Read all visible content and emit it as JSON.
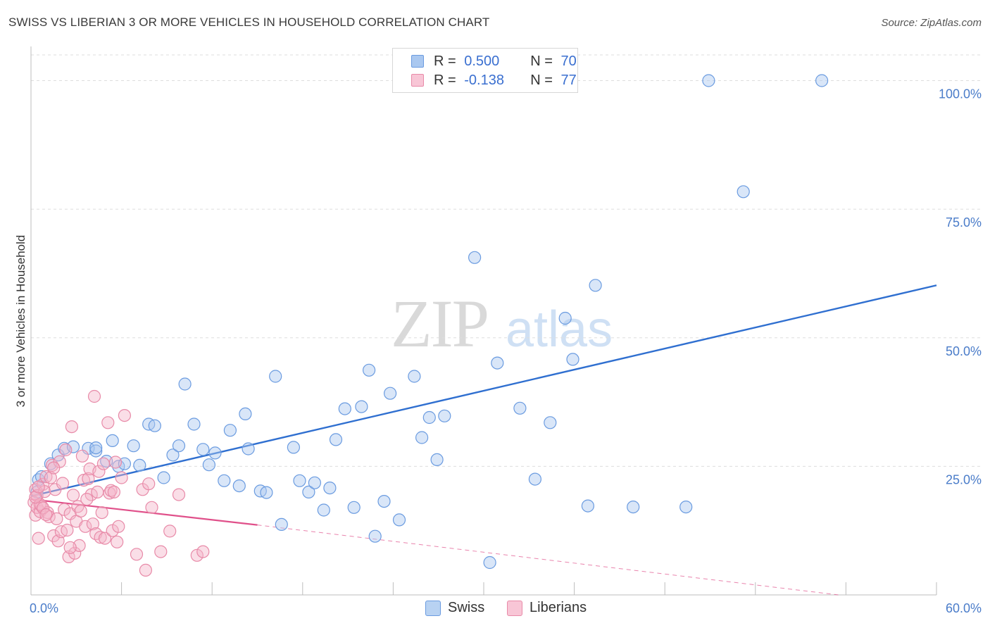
{
  "header": {
    "title": "SWISS VS LIBERIAN 3 OR MORE VEHICLES IN HOUSEHOLD CORRELATION CHART",
    "source": "Source: ZipAtlas.com"
  },
  "legend": {
    "swiss": {
      "r_label": "R = ",
      "r_value": "0.500",
      "n_label": "N = ",
      "n_value": "70"
    },
    "liberians": {
      "r_label": "R = ",
      "r_value": "-0.138",
      "n_label": "N = ",
      "n_value": "77"
    }
  },
  "colors": {
    "swiss_fill": "#aac8f0",
    "swiss_stroke": "#6a9be0",
    "swiss_line": "#2f6fd0",
    "lib_fill": "#f5b6ca",
    "lib_stroke": "#e88aa8",
    "lib_line": "#e0508a",
    "grid": "#dedede",
    "tick_text": "#4a7cc9"
  },
  "chart_data": {
    "type": "scatter",
    "title": "SWISS VS LIBERIAN 3 OR MORE VEHICLES IN HOUSEHOLD CORRELATION CHART",
    "xlabel": "",
    "ylabel": "3 or more Vehicles in Household",
    "xlim": [
      0,
      60
    ],
    "ylim": [
      0,
      105
    ],
    "x_tick_labels": [
      "0.0%",
      "60.0%"
    ],
    "y_ticks": [
      25,
      50,
      75,
      100
    ],
    "y_tick_labels": [
      "25.0%",
      "50.0%",
      "75.0%",
      "100.0%"
    ],
    "legend_entries": [
      "Swiss",
      "Liberians"
    ],
    "series": [
      {
        "name": "Swiss",
        "points": [
          [
            0.5,
            22.4
          ],
          [
            0.7,
            23.0
          ],
          [
            1.3,
            25.5
          ],
          [
            1.8,
            27.2
          ],
          [
            2.2,
            28.5
          ],
          [
            2.8,
            28.8
          ],
          [
            3.8,
            28.5
          ],
          [
            4.3,
            28.0
          ],
          [
            4.3,
            28.6
          ],
          [
            5.0,
            26.0
          ],
          [
            5.4,
            30.0
          ],
          [
            5.8,
            25.0
          ],
          [
            6.2,
            25.5
          ],
          [
            6.8,
            29.0
          ],
          [
            7.2,
            25.2
          ],
          [
            7.8,
            33.2
          ],
          [
            8.2,
            32.9
          ],
          [
            8.8,
            22.8
          ],
          [
            9.4,
            27.2
          ],
          [
            9.8,
            29.0
          ],
          [
            10.2,
            41.0
          ],
          [
            10.8,
            33.2
          ],
          [
            11.4,
            28.3
          ],
          [
            11.8,
            25.3
          ],
          [
            12.2,
            27.6
          ],
          [
            12.8,
            22.2
          ],
          [
            13.2,
            32.0
          ],
          [
            13.8,
            21.2
          ],
          [
            14.2,
            35.2
          ],
          [
            14.4,
            28.4
          ],
          [
            15.2,
            20.2
          ],
          [
            15.6,
            19.9
          ],
          [
            16.2,
            42.5
          ],
          [
            16.6,
            13.7
          ],
          [
            17.4,
            28.7
          ],
          [
            17.8,
            22.2
          ],
          [
            18.4,
            20.0
          ],
          [
            18.8,
            21.8
          ],
          [
            19.4,
            16.5
          ],
          [
            19.8,
            20.8
          ],
          [
            20.2,
            30.2
          ],
          [
            20.8,
            36.2
          ],
          [
            21.4,
            17.0
          ],
          [
            21.9,
            36.6
          ],
          [
            22.4,
            43.7
          ],
          [
            22.8,
            11.4
          ],
          [
            23.4,
            18.2
          ],
          [
            23.8,
            39.2
          ],
          [
            24.4,
            14.6
          ],
          [
            25.4,
            42.5
          ],
          [
            25.9,
            30.6
          ],
          [
            26.4,
            34.5
          ],
          [
            26.9,
            26.3
          ],
          [
            27.4,
            34.8
          ],
          [
            29.4,
            65.6
          ],
          [
            30.4,
            6.3
          ],
          [
            30.9,
            45.1
          ],
          [
            32.4,
            36.3
          ],
          [
            33.4,
            22.5
          ],
          [
            34.4,
            33.5
          ],
          [
            35.4,
            53.8
          ],
          [
            35.9,
            45.8
          ],
          [
            36.9,
            17.3
          ],
          [
            37.4,
            60.2
          ],
          [
            39.9,
            17.1
          ],
          [
            43.4,
            17.1
          ],
          [
            44.9,
            100.0
          ],
          [
            47.2,
            78.4
          ],
          [
            52.4,
            100.0
          ],
          [
            0.4,
            20.0
          ]
        ]
      },
      {
        "name": "Liberians",
        "points": [
          [
            0.2,
            18.0
          ],
          [
            0.3,
            15.5
          ],
          [
            0.3,
            20.5
          ],
          [
            0.4,
            17.0
          ],
          [
            0.4,
            19.3
          ],
          [
            0.5,
            11.0
          ],
          [
            0.6,
            16.2
          ],
          [
            0.7,
            17.3
          ],
          [
            0.8,
            21.5
          ],
          [
            0.9,
            20.1
          ],
          [
            1.0,
            23.0
          ],
          [
            1.1,
            16.0
          ],
          [
            1.2,
            15.2
          ],
          [
            1.3,
            22.8
          ],
          [
            1.4,
            25.2
          ],
          [
            1.5,
            11.5
          ],
          [
            1.6,
            20.5
          ],
          [
            1.7,
            14.8
          ],
          [
            1.8,
            10.5
          ],
          [
            1.9,
            25.9
          ],
          [
            2.0,
            12.3
          ],
          [
            2.1,
            21.7
          ],
          [
            2.2,
            16.6
          ],
          [
            2.3,
            28.2
          ],
          [
            2.4,
            12.6
          ],
          [
            2.5,
            7.4
          ],
          [
            2.6,
            15.8
          ],
          [
            2.7,
            32.7
          ],
          [
            2.8,
            19.4
          ],
          [
            2.9,
            8.1
          ],
          [
            3.0,
            14.3
          ],
          [
            3.1,
            17.2
          ],
          [
            3.2,
            9.6
          ],
          [
            3.3,
            16.3
          ],
          [
            3.4,
            27.0
          ],
          [
            3.5,
            22.3
          ],
          [
            3.6,
            13.3
          ],
          [
            3.8,
            22.6
          ],
          [
            3.9,
            24.5
          ],
          [
            4.0,
            19.5
          ],
          [
            4.1,
            13.8
          ],
          [
            4.2,
            38.6
          ],
          [
            4.3,
            11.9
          ],
          [
            4.4,
            20.0
          ],
          [
            4.5,
            24.0
          ],
          [
            4.6,
            11.2
          ],
          [
            4.7,
            16.0
          ],
          [
            4.8,
            25.5
          ],
          [
            4.9,
            11.0
          ],
          [
            5.1,
            33.5
          ],
          [
            5.2,
            19.8
          ],
          [
            5.3,
            20.3
          ],
          [
            5.4,
            12.5
          ],
          [
            5.5,
            20.0
          ],
          [
            5.6,
            25.8
          ],
          [
            5.7,
            10.3
          ],
          [
            5.8,
            13.3
          ],
          [
            6.0,
            22.8
          ],
          [
            6.2,
            34.9
          ],
          [
            7.0,
            7.9
          ],
          [
            7.4,
            20.5
          ],
          [
            7.6,
            4.8
          ],
          [
            7.8,
            21.6
          ],
          [
            8.0,
            17.0
          ],
          [
            8.6,
            8.4
          ],
          [
            9.2,
            12.4
          ],
          [
            9.8,
            19.5
          ],
          [
            11.0,
            7.7
          ],
          [
            11.4,
            8.4
          ],
          [
            0.6,
            17.6
          ],
          [
            0.8,
            16.9
          ],
          [
            1.0,
            15.6
          ],
          [
            0.3,
            19.0
          ],
          [
            0.5,
            21.0
          ],
          [
            1.5,
            24.7
          ],
          [
            2.6,
            9.2
          ],
          [
            3.7,
            18.6
          ]
        ]
      }
    ],
    "trend_lines": [
      {
        "series": "Swiss",
        "x": [
          0,
          60
        ],
        "y": [
          19.2,
          60.2
        ]
      },
      {
        "series": "Liberians",
        "solid_x": [
          0,
          15
        ],
        "solid_y": [
          18.6,
          13.6
        ],
        "dashed_x": [
          15,
          53.5
        ],
        "dashed_y": [
          13.6,
          0.0
        ]
      }
    ],
    "grid": true,
    "legend_position": "top-center"
  }
}
